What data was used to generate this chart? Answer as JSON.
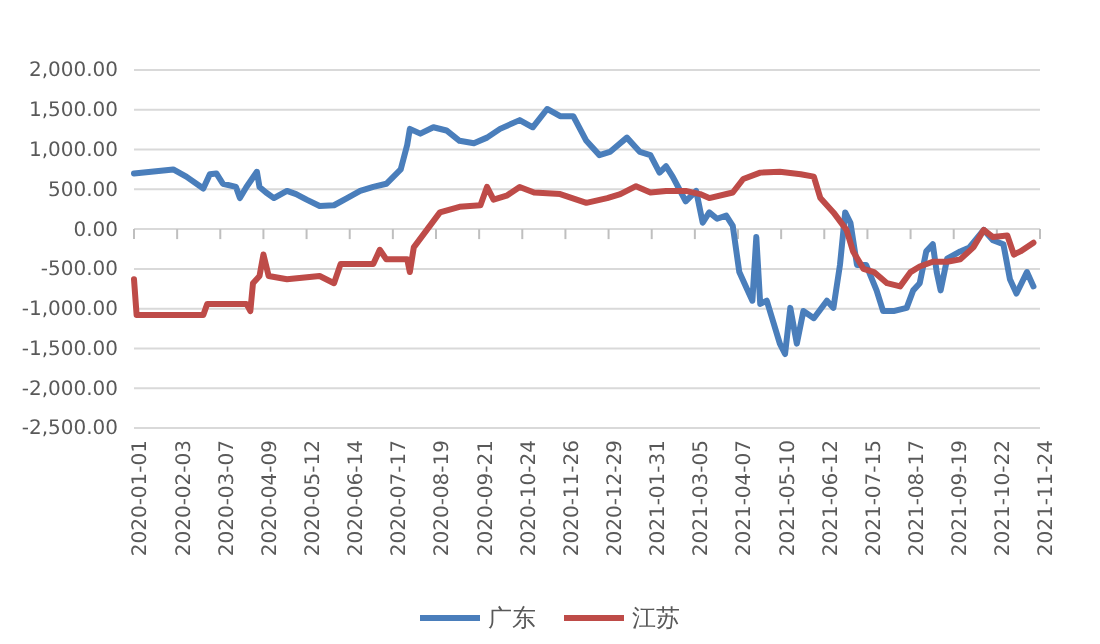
{
  "chart_data": {
    "type": "line",
    "xlim": [
      "2020-01-01",
      "2021-11-24"
    ],
    "xticks": [
      "2020-01-01",
      "2020-02-03",
      "2020-03-07",
      "2020-04-09",
      "2020-05-12",
      "2020-06-14",
      "2020-07-17",
      "2020-08-19",
      "2020-09-21",
      "2020-10-24",
      "2020-11-26",
      "2020-12-29",
      "2021-01-31",
      "2021-03-05",
      "2021-04-07",
      "2021-05-10",
      "2021-06-12",
      "2021-07-15",
      "2021-08-17",
      "2021-09-19",
      "2021-10-22",
      "2021-11-24"
    ],
    "ylim": [
      -2500,
      2000
    ],
    "yticks": [
      {
        "value": -2500,
        "label": "-2,500.00"
      },
      {
        "value": -2000,
        "label": "-2,000.00"
      },
      {
        "value": -1500,
        "label": "-1,500.00"
      },
      {
        "value": -1000,
        "label": "-1,000.00"
      },
      {
        "value": -500,
        "label": "-500.00"
      },
      {
        "value": 0,
        "label": "0.00"
      },
      {
        "value": 500,
        "label": "500.00"
      },
      {
        "value": 1000,
        "label": "1,000.00"
      },
      {
        "value": 1500,
        "label": "1,500.00"
      },
      {
        "value": 2000,
        "label": "2,000.00"
      }
    ],
    "grid": "y",
    "legend": "bottom",
    "line_style": "solid",
    "marker": "none",
    "series": [
      {
        "name": "广东",
        "color": "#4a7ebb",
        "x": [
          "2020-01-01",
          "2020-01-31",
          "2020-02-10",
          "2020-02-23",
          "2020-02-28",
          "2020-03-04",
          "2020-03-09",
          "2020-03-19",
          "2020-03-22",
          "2020-03-27",
          "2020-04-04",
          "2020-04-06",
          "2020-04-11",
          "2020-04-17",
          "2020-04-27",
          "2020-05-04",
          "2020-05-12",
          "2020-05-22",
          "2020-06-02",
          "2020-06-12",
          "2020-06-22",
          "2020-07-02",
          "2020-07-12",
          "2020-07-23",
          "2020-07-28",
          "2020-07-30",
          "2020-08-07",
          "2020-08-17",
          "2020-08-27",
          "2020-09-06",
          "2020-09-17",
          "2020-09-27",
          "2020-10-07",
          "2020-10-22",
          "2020-11-01",
          "2020-11-12",
          "2020-11-22",
          "2020-12-02",
          "2020-12-12",
          "2020-12-22",
          "2020-12-30",
          "2021-01-12",
          "2021-01-22",
          "2021-01-30",
          "2021-02-06",
          "2021-02-11",
          "2021-02-16",
          "2021-02-26",
          "2021-03-06",
          "2021-03-11",
          "2021-03-16",
          "2021-03-22",
          "2021-03-29",
          "2021-04-03",
          "2021-04-08",
          "2021-04-13",
          "2021-04-18",
          "2021-04-21",
          "2021-04-24",
          "2021-04-29",
          "2021-05-04",
          "2021-05-09",
          "2021-05-13",
          "2021-05-17",
          "2021-05-22",
          "2021-05-27",
          "2021-06-04",
          "2021-06-14",
          "2021-06-19",
          "2021-06-24",
          "2021-06-28",
          "2021-07-02",
          "2021-07-07",
          "2021-07-14",
          "2021-07-22",
          "2021-07-27",
          "2021-08-04",
          "2021-08-14",
          "2021-08-19",
          "2021-08-24",
          "2021-08-29",
          "2021-09-03",
          "2021-09-06",
          "2021-09-09",
          "2021-09-14",
          "2021-09-24",
          "2021-10-01",
          "2021-10-12",
          "2021-10-19",
          "2021-10-27",
          "2021-11-01",
          "2021-11-06",
          "2021-11-14",
          "2021-11-19"
        ],
        "values": [
          700,
          750,
          660,
          510,
          690,
          700,
          570,
          530,
          390,
          530,
          720,
          530,
          460,
          390,
          480,
          440,
          370,
          290,
          300,
          390,
          480,
          530,
          570,
          750,
          1060,
          1260,
          1200,
          1280,
          1240,
          1110,
          1080,
          1150,
          1260,
          1370,
          1280,
          1510,
          1420,
          1420,
          1110,
          930,
          970,
          1150,
          970,
          930,
          710,
          790,
          660,
          350,
          480,
          80,
          210,
          130,
          170,
          40,
          -540,
          -720,
          -900,
          -100,
          -940,
          -900,
          -1170,
          -1440,
          -1570,
          -990,
          -1440,
          -1030,
          -1120,
          -900,
          -990,
          -450,
          210,
          80,
          -450,
          -450,
          -770,
          -1030,
          -1030,
          -990,
          -770,
          -680,
          -280,
          -190,
          -540,
          -770,
          -370,
          -280,
          -230,
          -10,
          -140,
          -190,
          -630,
          -810,
          -540,
          -720
        ]
      },
      {
        "name": "江苏",
        "color": "#be4b48",
        "x": [
          "2020-01-01",
          "2020-01-03",
          "2020-01-16",
          "2020-02-23",
          "2020-02-26",
          "2020-03-27",
          "2020-03-30",
          "2020-04-01",
          "2020-04-06",
          "2020-04-09",
          "2020-04-13",
          "2020-04-27",
          "2020-05-22",
          "2020-06-02",
          "2020-06-07",
          "2020-07-02",
          "2020-07-07",
          "2020-07-12",
          "2020-07-28",
          "2020-07-30",
          "2020-08-02",
          "2020-08-12",
          "2020-08-22",
          "2020-09-06",
          "2020-09-22",
          "2020-09-27",
          "2020-10-02",
          "2020-10-12",
          "2020-10-22",
          "2020-11-02",
          "2020-11-22",
          "2020-12-12",
          "2020-12-28",
          "2021-01-07",
          "2021-01-19",
          "2021-01-30",
          "2021-02-11",
          "2021-02-26",
          "2021-03-09",
          "2021-03-16",
          "2021-04-03",
          "2021-04-11",
          "2021-04-24",
          "2021-05-09",
          "2021-05-25",
          "2021-06-04",
          "2021-06-09",
          "2021-06-19",
          "2021-06-29",
          "2021-07-04",
          "2021-07-12",
          "2021-07-20",
          "2021-07-30",
          "2021-08-09",
          "2021-08-17",
          "2021-08-24",
          "2021-09-03",
          "2021-09-14",
          "2021-09-24",
          "2021-10-04",
          "2021-10-12",
          "2021-10-19",
          "2021-10-30",
          "2021-11-04",
          "2021-11-09",
          "2021-11-19"
        ],
        "values": [
          -630,
          -1080,
          -1080,
          -1080,
          -940,
          -940,
          -1030,
          -680,
          -590,
          -320,
          -590,
          -630,
          -590,
          -680,
          -440,
          -440,
          -260,
          -380,
          -380,
          -540,
          -230,
          -10,
          210,
          280,
          300,
          530,
          370,
          420,
          530,
          460,
          440,
          330,
          390,
          440,
          540,
          460,
          480,
          480,
          440,
          390,
          460,
          630,
          710,
          720,
          690,
          660,
          390,
          210,
          -10,
          -280,
          -500,
          -540,
          -680,
          -720,
          -540,
          -470,
          -410,
          -410,
          -380,
          -230,
          -10,
          -100,
          -80,
          -320,
          -280,
          -170
        ]
      }
    ]
  }
}
